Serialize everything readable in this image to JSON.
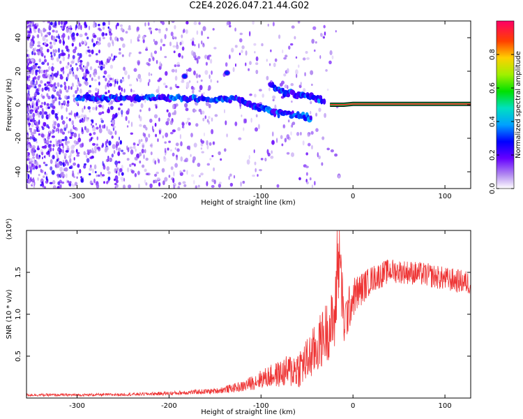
{
  "figure_title": "C2E4.2026.047.21.44.G02",
  "chart_data": [
    {
      "type": "heatmap",
      "title": "C2E4.2026.047.21.44.G02",
      "xlabel": "Height of straight line (km)",
      "ylabel": "Frequency (Hz)",
      "xlim": [
        -355,
        128
      ],
      "ylim": [
        -50,
        50
      ],
      "xticks": [
        -300,
        -200,
        -100,
        0,
        100
      ],
      "xtick_labels": [
        "-300",
        "-200",
        "-100",
        "0",
        "100"
      ],
      "yticks": [
        -40,
        -20,
        0,
        20,
        40
      ],
      "ytick_labels": [
        "-40",
        "-20",
        "0",
        "20",
        "40"
      ],
      "colorbar": {
        "label": "Normalized spectral amplitude",
        "range": [
          0,
          1
        ],
        "ticks": [
          0.0,
          0.2,
          0.4,
          0.6,
          0.8
        ],
        "tick_labels": [
          "0.0",
          "0.2",
          "0.4",
          "0.6",
          "0.8"
        ]
      },
      "features": [
        {
          "name": "noise-floor",
          "x_range": [
            -355,
            -20
          ],
          "freq_range": [
            -50,
            50
          ],
          "amplitude": 0.1
        },
        {
          "name": "carrier-track-left",
          "x": [
            -300,
            -250,
            -200,
            -150,
            -120
          ],
          "freq": [
            4,
            4,
            4,
            3.5,
            3
          ],
          "amplitude": 0.3
        },
        {
          "name": "carrier-track-split-lower",
          "x": [
            -120,
            -100,
            -80,
            -60,
            -45
          ],
          "freq": [
            2,
            -2,
            -5,
            -6,
            -8
          ],
          "amplitude": 0.3
        },
        {
          "name": "carrier-track-split-upper",
          "x": [
            -90,
            -80,
            -60,
            -45,
            -30
          ],
          "freq": [
            12,
            8,
            6,
            5,
            2
          ],
          "amplitude": 0.3
        },
        {
          "name": "carrier-line",
          "x": [
            -25,
            -10,
            0,
            128
          ],
          "freq": [
            0,
            0,
            0.5,
            0.5
          ],
          "amplitude": 0.92
        },
        {
          "name": "spike-1",
          "x": [
            -183
          ],
          "freq": [
            17
          ],
          "amplitude": 0.3
        },
        {
          "name": "spike-2",
          "x": [
            -137
          ],
          "freq": [
            19
          ],
          "amplitude": 0.3
        }
      ]
    },
    {
      "type": "line",
      "xlabel": "Height of straight line (km)",
      "ylabel": "SNR (10 * v/v)",
      "yscale_label": "(x10⁴)",
      "xlim": [
        -355,
        128
      ],
      "ylim": [
        0,
        20000
      ],
      "xticks": [
        -300,
        -200,
        -100,
        0,
        100
      ],
      "xtick_labels": [
        "-300",
        "-200",
        "-100",
        "0",
        "100"
      ],
      "yticks": [
        5000,
        10000,
        15000
      ],
      "ytick_labels": [
        "0.5",
        "1.0",
        "1.5"
      ],
      "series": [
        {
          "name": "SNR",
          "color": "#ee3333",
          "x": [
            -355,
            -300,
            -250,
            -200,
            -150,
            -120,
            -100,
            -80,
            -60,
            -50,
            -40,
            -30,
            -20,
            -15,
            -10,
            0,
            10,
            20,
            30,
            40,
            60,
            80,
            100,
            128
          ],
          "y": [
            400,
            400,
            450,
            600,
            900,
            1500,
            2500,
            3200,
            4000,
            5000,
            6500,
            8500,
            10000,
            18000,
            9500,
            12500,
            13500,
            14500,
            15000,
            15500,
            15300,
            15000,
            14500,
            14000
          ],
          "amplitude_y": [
            200,
            200,
            200,
            300,
            400,
            800,
            1400,
            2000,
            3000,
            3500,
            4000,
            4500,
            5000,
            6000,
            4000,
            3000,
            2500,
            2000,
            2000,
            1800,
            1800,
            1800,
            1800,
            1800
          ]
        }
      ]
    }
  ]
}
